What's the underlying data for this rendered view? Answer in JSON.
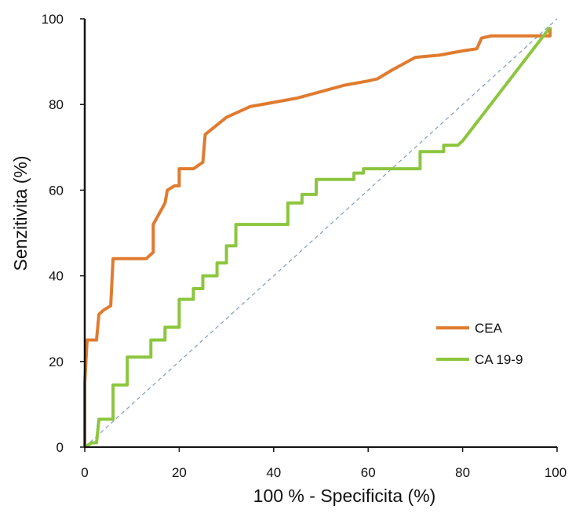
{
  "chart_data": {
    "type": "line",
    "xlabel": "100 % - Specificita (%)",
    "ylabel": "Senzitivita (%)",
    "xlim": [
      0,
      100
    ],
    "ylim": [
      0,
      100
    ],
    "x_ticks": [
      "0",
      "20",
      "40",
      "60",
      "80",
      "100"
    ],
    "y_ticks": [
      "0",
      "20",
      "40",
      "60",
      "80",
      "100"
    ],
    "grid": false,
    "legend": "lower-right",
    "reference_line": {
      "from": [
        0,
        0
      ],
      "to": [
        100,
        100
      ],
      "style": "dashed",
      "color": "#7f9cc4"
    },
    "series": [
      {
        "name": "CEA",
        "color": "#e07b2f",
        "points": [
          [
            0,
            0
          ],
          [
            0,
            15
          ],
          [
            0.5,
            25
          ],
          [
            2.5,
            25
          ],
          [
            3,
            31
          ],
          [
            4,
            32
          ],
          [
            5.5,
            33
          ],
          [
            6,
            44
          ],
          [
            13,
            44
          ],
          [
            14.5,
            45.5
          ],
          [
            14.5,
            52
          ],
          [
            17,
            57
          ],
          [
            17.5,
            60
          ],
          [
            19,
            61
          ],
          [
            20,
            61
          ],
          [
            20,
            65
          ],
          [
            23,
            65
          ],
          [
            25,
            66.5
          ],
          [
            25.5,
            73
          ],
          [
            30,
            77
          ],
          [
            35,
            79.5
          ],
          [
            40,
            80.5
          ],
          [
            45,
            81.5
          ],
          [
            50,
            83
          ],
          [
            55,
            84.5
          ],
          [
            60,
            85.5
          ],
          [
            62,
            86
          ],
          [
            65,
            88
          ],
          [
            70,
            91
          ],
          [
            75,
            91.5
          ],
          [
            80,
            92.5
          ],
          [
            83,
            93
          ],
          [
            84,
            95.5
          ],
          [
            86,
            96
          ],
          [
            98.5,
            96
          ],
          [
            98.5,
            98
          ]
        ]
      },
      {
        "name": "CA 19-9",
        "color": "#8cc63f",
        "points": [
          [
            0,
            0
          ],
          [
            1.5,
            1
          ],
          [
            2.5,
            1
          ],
          [
            3,
            6.5
          ],
          [
            6,
            6.5
          ],
          [
            6,
            14.5
          ],
          [
            9,
            14.5
          ],
          [
            9,
            21
          ],
          [
            14,
            21
          ],
          [
            14,
            25
          ],
          [
            17,
            25
          ],
          [
            17,
            28
          ],
          [
            20,
            28
          ],
          [
            20,
            34.5
          ],
          [
            23,
            34.5
          ],
          [
            23,
            37
          ],
          [
            25,
            37
          ],
          [
            25,
            40
          ],
          [
            28,
            40
          ],
          [
            28,
            43
          ],
          [
            30,
            43
          ],
          [
            30,
            47
          ],
          [
            32,
            47
          ],
          [
            32,
            52
          ],
          [
            43,
            52
          ],
          [
            43,
            57
          ],
          [
            46,
            57
          ],
          [
            46,
            59
          ],
          [
            49,
            59
          ],
          [
            49,
            62.5
          ],
          [
            57,
            62.5
          ],
          [
            57,
            64
          ],
          [
            59,
            64
          ],
          [
            59,
            65
          ],
          [
            71,
            65
          ],
          [
            71,
            69
          ],
          [
            76,
            69
          ],
          [
            76,
            70.5
          ],
          [
            79,
            70.5
          ],
          [
            80,
            71.5
          ],
          [
            98.5,
            98
          ]
        ]
      }
    ]
  }
}
